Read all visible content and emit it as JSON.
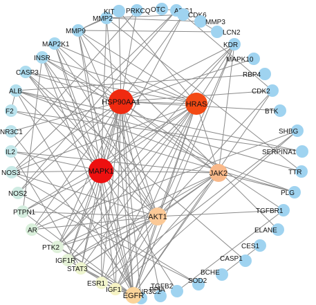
{
  "network": {
    "nodes": [
      {
        "id": "PRKCQ",
        "color": "#9fd3f0"
      },
      {
        "id": "OTC",
        "color": "#9fd3f0"
      },
      {
        "id": "ARG1",
        "color": "#9fd3f0"
      },
      {
        "id": "CDK6",
        "color": "#9fd3f0"
      },
      {
        "id": "MMP3",
        "color": "#9fd3f0"
      },
      {
        "id": "LCN2",
        "color": "#9fd3f0"
      },
      {
        "id": "KDR",
        "color": "#9fd3f0"
      },
      {
        "id": "MAPK10",
        "color": "#9fd3f0"
      },
      {
        "id": "RBP4",
        "color": "#9fd3f0"
      },
      {
        "id": "CDK2",
        "color": "#9fd3f0"
      },
      {
        "id": "BTK",
        "color": "#9fd3f0"
      },
      {
        "id": "SHBG",
        "color": "#9fd3f0"
      },
      {
        "id": "SERPINA1",
        "color": "#9fd3f0"
      },
      {
        "id": "TTR",
        "color": "#9fd3f0"
      },
      {
        "id": "PLG",
        "color": "#9fd3f0"
      },
      {
        "id": "TGFBR1",
        "color": "#9fd3f0"
      },
      {
        "id": "ELANE",
        "color": "#9fd3f0"
      },
      {
        "id": "CES1",
        "color": "#9fd3f0"
      },
      {
        "id": "CASP1",
        "color": "#9fd3f0"
      },
      {
        "id": "BCHE",
        "color": "#9fd3f0"
      },
      {
        "id": "SOD2",
        "color": "#9fd3f0"
      },
      {
        "id": "TGFB2",
        "color": "#9fd3f0"
      },
      {
        "id": "PPIA",
        "color": "#9fd3f0"
      },
      {
        "id": "NR3C2",
        "color": "#9fd3f0"
      },
      {
        "id": "EGFR",
        "color": "#fbd49a"
      },
      {
        "id": "IGF1",
        "color": "#f6f3c4"
      },
      {
        "id": "ESR1",
        "color": "#f2f5cc"
      },
      {
        "id": "STAT3",
        "color": "#eef5cf"
      },
      {
        "id": "IGF1R",
        "color": "#e4f1d6"
      },
      {
        "id": "PTK2",
        "color": "#dff0da"
      },
      {
        "id": "AR",
        "color": "#d9efdb"
      },
      {
        "id": "PTPN1",
        "color": "#d5eddf"
      },
      {
        "id": "NOS2",
        "color": "#cfebe2"
      },
      {
        "id": "NOS3",
        "color": "#c9e9e6"
      },
      {
        "id": "IL2",
        "color": "#c4e7e9"
      },
      {
        "id": "NR3C1",
        "color": "#bde4ec"
      },
      {
        "id": "F2",
        "color": "#b8e2ed"
      },
      {
        "id": "ALB",
        "color": "#b2dfee"
      },
      {
        "id": "CASP3",
        "color": "#acdcef"
      },
      {
        "id": "INSR",
        "color": "#a9daf0"
      },
      {
        "id": "MAP2K1",
        "color": "#a5d8f0"
      },
      {
        "id": "MMP9",
        "color": "#a2d6f0"
      },
      {
        "id": "MMP2",
        "color": "#9fd4f0"
      },
      {
        "id": "KIT",
        "color": "#9fd3f0"
      },
      {
        "id": "HSP90AA1",
        "color": "#f02a10"
      },
      {
        "id": "HRAS",
        "color": "#f34a14"
      },
      {
        "id": "MAPK1",
        "color": "#ee1010"
      },
      {
        "id": "JAK2",
        "color": "#f9b98a"
      },
      {
        "id": "AKT1",
        "color": "#fbc997"
      }
    ],
    "edges": [
      [
        "HSP90AA1",
        "HRAS"
      ],
      [
        "HSP90AA1",
        "MAPK1"
      ],
      [
        "HSP90AA1",
        "JAK2"
      ],
      [
        "HSP90AA1",
        "AKT1"
      ],
      [
        "HSP90AA1",
        "EGFR"
      ],
      [
        "HSP90AA1",
        "KIT"
      ],
      [
        "HSP90AA1",
        "PRKCQ"
      ],
      [
        "HSP90AA1",
        "CDK6"
      ],
      [
        "HSP90AA1",
        "CDK2"
      ],
      [
        "HSP90AA1",
        "KDR"
      ],
      [
        "HSP90AA1",
        "BTK"
      ],
      [
        "HSP90AA1",
        "MAPK10"
      ],
      [
        "HSP90AA1",
        "STAT3"
      ],
      [
        "HSP90AA1",
        "IGF1R"
      ],
      [
        "HSP90AA1",
        "PTK2"
      ],
      [
        "HSP90AA1",
        "AR"
      ],
      [
        "HSP90AA1",
        "NOS3"
      ],
      [
        "HSP90AA1",
        "NOS2"
      ],
      [
        "HSP90AA1",
        "NR3C1"
      ],
      [
        "HSP90AA1",
        "MAP2K1"
      ],
      [
        "HSP90AA1",
        "INSR"
      ],
      [
        "HSP90AA1",
        "ESR1"
      ],
      [
        "HSP90AA1",
        "TGFBR1"
      ],
      [
        "HSP90AA1",
        "CASP3"
      ],
      [
        "HSP90AA1",
        "IGF1"
      ],
      [
        "HSP90AA1",
        "NR3C2"
      ],
      [
        "HRAS",
        "MAPK1"
      ],
      [
        "HRAS",
        "JAK2"
      ],
      [
        "HRAS",
        "AKT1"
      ],
      [
        "HRAS",
        "EGFR"
      ],
      [
        "HRAS",
        "KDR"
      ],
      [
        "HRAS",
        "MAP2K1"
      ],
      [
        "HRAS",
        "INSR"
      ],
      [
        "HRAS",
        "IGF1R"
      ],
      [
        "HRAS",
        "PTK2"
      ],
      [
        "HRAS",
        "STAT3"
      ],
      [
        "HRAS",
        "ESR1"
      ],
      [
        "HRAS",
        "IGF1"
      ],
      [
        "HRAS",
        "CASP3"
      ],
      [
        "HRAS",
        "KIT"
      ],
      [
        "HRAS",
        "PTPN1"
      ],
      [
        "HRAS",
        "MMP9"
      ],
      [
        "HRAS",
        "NOS3"
      ],
      [
        "MAPK1",
        "JAK2"
      ],
      [
        "MAPK1",
        "AKT1"
      ],
      [
        "MAPK1",
        "EGFR"
      ],
      [
        "MAPK1",
        "MAP2K1"
      ],
      [
        "MAPK1",
        "STAT3"
      ],
      [
        "MAPK1",
        "ESR1"
      ],
      [
        "MAPK1",
        "IGF1R"
      ],
      [
        "MAPK1",
        "PTK2"
      ],
      [
        "MAPK1",
        "MMP9"
      ],
      [
        "MAPK1",
        "MMP2"
      ],
      [
        "MAPK1",
        "CASP3"
      ],
      [
        "MAPK1",
        "IL2"
      ],
      [
        "MAPK1",
        "AR"
      ],
      [
        "MAPK1",
        "INSR"
      ],
      [
        "MAPK1",
        "CDK6"
      ],
      [
        "MAPK1",
        "TGFB2"
      ],
      [
        "MAPK1",
        "NOS3"
      ],
      [
        "MAPK1",
        "PTPN1"
      ],
      [
        "MAPK1",
        "ALB"
      ],
      [
        "MAPK1",
        "IGF1"
      ],
      [
        "MAPK1",
        "KDR"
      ],
      [
        "JAK2",
        "AKT1"
      ],
      [
        "JAK2",
        "EGFR"
      ],
      [
        "JAK2",
        "STAT3"
      ],
      [
        "JAK2",
        "IL2"
      ],
      [
        "JAK2",
        "PTK2"
      ],
      [
        "JAK2",
        "KDR"
      ],
      [
        "JAK2",
        "IGF1R"
      ],
      [
        "JAK2",
        "INSR"
      ],
      [
        "JAK2",
        "PLG"
      ],
      [
        "JAK2",
        "IGF1"
      ],
      [
        "AKT1",
        "EGFR"
      ],
      [
        "AKT1",
        "IGF1R"
      ],
      [
        "AKT1",
        "INSR"
      ],
      [
        "AKT1",
        "NOS3"
      ],
      [
        "AKT1",
        "CASP3"
      ],
      [
        "AKT1",
        "STAT3"
      ],
      [
        "AKT1",
        "ESR1"
      ],
      [
        "AKT1",
        "PTK2"
      ],
      [
        "AKT1",
        "MMP9"
      ],
      [
        "AKT1",
        "AR"
      ],
      [
        "AKT1",
        "IGF1"
      ],
      [
        "AKT1",
        "PTPN1"
      ],
      [
        "AKT1",
        "KDR"
      ],
      [
        "AKT1",
        "MAP2K1"
      ],
      [
        "AKT1",
        "CDK2"
      ],
      [
        "AKT1",
        "TGFBR1"
      ],
      [
        "EGFR",
        "STAT3"
      ],
      [
        "EGFR",
        "ESR1"
      ],
      [
        "EGFR",
        "PTK2"
      ],
      [
        "EGFR",
        "PTPN1"
      ],
      [
        "EGFR",
        "IGF1R"
      ],
      [
        "EGFR",
        "KDR"
      ],
      [
        "EGFR",
        "MMP9"
      ],
      [
        "EGFR",
        "MMP2"
      ],
      [
        "EGFR",
        "INSR"
      ],
      [
        "EGFR",
        "AR"
      ],
      [
        "EGFR",
        "ALB"
      ],
      [
        "EGFR",
        "CDK2"
      ],
      [
        "EGFR",
        "IGF1"
      ],
      [
        "EGFR",
        "MAP2K1"
      ],
      [
        "MMP2",
        "MMP9"
      ],
      [
        "MMP2",
        "MMP3"
      ],
      [
        "MMP2",
        "CDK6"
      ],
      [
        "MMP9",
        "LCN2"
      ],
      [
        "MMP9",
        "ELANE"
      ],
      [
        "MMP2",
        "TTR"
      ],
      [
        "ALB",
        "TTR"
      ],
      [
        "ALB",
        "SERPINA1"
      ],
      [
        "ALB",
        "RBP4"
      ],
      [
        "ALB",
        "PLG"
      ],
      [
        "ALB",
        "F2"
      ],
      [
        "F2",
        "PLG"
      ],
      [
        "F2",
        "SERPINA1"
      ],
      [
        "CASP3",
        "CASP1"
      ],
      [
        "IGF1",
        "IGF1R"
      ],
      [
        "IGF1",
        "SHBG"
      ],
      [
        "ESR1",
        "SHBG"
      ],
      [
        "AR",
        "SHBG"
      ],
      [
        "NR3C1",
        "NR3C2"
      ],
      [
        "KIT",
        "MMP9"
      ],
      [
        "OTC",
        "ARG1"
      ],
      [
        "ARG1",
        "NOS2"
      ],
      [
        "ARG1",
        "NOS3"
      ],
      [
        "NOS2",
        "SOD2"
      ],
      [
        "NOS3",
        "SOD2"
      ],
      [
        "CES1",
        "BCHE"
      ],
      [
        "TGFBR1",
        "TGFB2"
      ],
      [
        "PTPN1",
        "INSR"
      ],
      [
        "STAT3",
        "IL2"
      ],
      [
        "PPIA",
        "HSP90AA1"
      ],
      [
        "LCN2",
        "MMP3"
      ],
      [
        "PRKCQ",
        "IL2"
      ],
      [
        "KDR",
        "PTK2"
      ],
      [
        "CDK2",
        "CDK6"
      ]
    ]
  }
}
